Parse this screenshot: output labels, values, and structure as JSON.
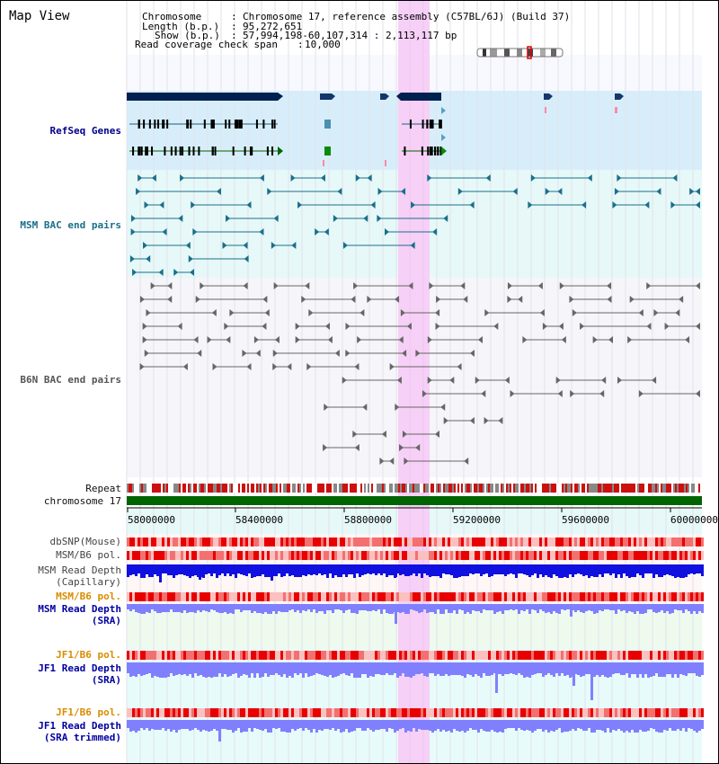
{
  "title": "Map View",
  "header": {
    "chromosome_key": "Chromosome",
    "chromosome_val": "Chromosome 17, reference assembly (C57BL/6J) (Build 37)",
    "length_key": "Length (b.p.)",
    "length_val": "95,272,651",
    "show_key": "Show (b.p.)",
    "show_val": "57,994,198-60,107,314 : 2,113,117 bp",
    "coverage_key": "Read coverage check span",
    "coverage_val": "10,000"
  },
  "tracks": {
    "refseq": "RefSeq Genes",
    "msm_bac": "MSM BAC end pairs",
    "b6n_bac": "B6N BAC end pairs",
    "repeat": "Repeat",
    "chromosome": "chromosome 17",
    "dbsnp": "dbSNP(Mouse)",
    "msm_b6_pol_1": "MSM/B6 pol.",
    "msm_read_depth_cap_1": "MSM Read Depth",
    "msm_read_depth_cap_2": "(Capillary)",
    "msm_b6_pol_2": "MSM/B6 pol.",
    "msm_read_depth_sra_1": "MSM Read Depth",
    "msm_read_depth_sra_2": "(SRA)",
    "jf1_b6_pol_1": "JF1/B6 pol.",
    "jf1_read_depth_1": "JF1 Read Depth",
    "jf1_read_depth_2": "(SRA)",
    "jf1_b6_pol_2": "JF1/B6 pol.",
    "jf1_read_depth_trim_1": "JF1 Read Depth",
    "jf1_read_depth_trim_2": "(SRA trimmed)"
  },
  "axis": {
    "ticks": [
      "58000000",
      "58400000",
      "58800000",
      "59200000",
      "59600000",
      "60000000"
    ]
  },
  "colors": {
    "highlight": "#f6d0f6",
    "refseq_bg": "#d7eefa",
    "msm_bg": "#e6f8f8",
    "chromosome": "#006400",
    "gene_dark": "#002050",
    "depth_capillary": "#1010e0",
    "depth_sra": "#8080ff"
  }
}
